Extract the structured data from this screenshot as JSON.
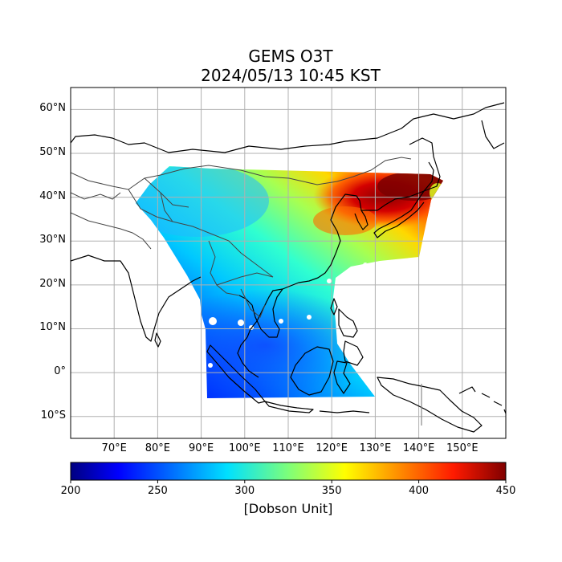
{
  "title": {
    "line1": "GEMS O3T",
    "line2": "2024/05/13 10:45 KST"
  },
  "map": {
    "projection": "PlateCarree",
    "lon_range": [
      60,
      160
    ],
    "lat_range": [
      -15,
      65
    ],
    "gridlines": true,
    "lat_ticks": [
      "60°N",
      "50°N",
      "40°N",
      "30°N",
      "20°N",
      "10°N",
      "0°",
      "10°S"
    ],
    "lon_ticks": [
      "70°E",
      "80°E",
      "90°E",
      "100°E",
      "110°E",
      "120°E",
      "130°E",
      "140°E",
      "150°E"
    ]
  },
  "colorbar": {
    "label": "[Dobson Unit]",
    "ticks": [
      "200",
      "250",
      "300",
      "350",
      "400",
      "450"
    ],
    "range": [
      200,
      450
    ],
    "colormap": "jet"
  },
  "colors": {
    "axes": "#000000",
    "grid": "#b0b0b0",
    "coast": "#000000",
    "border": "#444444"
  }
}
